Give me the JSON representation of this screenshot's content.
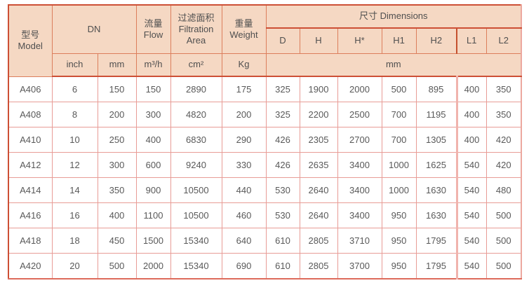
{
  "colors": {
    "header_bg": "#f5d8c3",
    "strong_border": "#cd4f35",
    "header_grid": "#dc7e5c",
    "body_grid": "#e89c96",
    "body_thick_border": "#f0b3ad",
    "outer_right_border": "#eca89f",
    "header_text": "#4f4f4f",
    "body_text": "#595959"
  },
  "table": {
    "header": {
      "model_zh": "型号",
      "model_en": "Model",
      "dn": "DN",
      "flow_zh": "流量",
      "flow_en": "Flow",
      "filtration_zh": "过滤面积",
      "filtration_en_line1": "Filtration",
      "filtration_en_line2": "Area",
      "weight_zh": "重量",
      "weight_en": "Weight",
      "dimensions": "尺寸 Dimensions",
      "dimension_columns": [
        "D",
        "H",
        "H*",
        "H1",
        "H2",
        "L1",
        "L2"
      ],
      "unit_inch": "inch",
      "unit_mm": "mm",
      "unit_flow": "m³/h",
      "unit_area": "cm²",
      "unit_weight": "Kg",
      "unit_dimensions": "mm"
    },
    "rows": [
      {
        "model": "A406",
        "values": [
          "6",
          "150",
          "150",
          "2890",
          "175",
          "325",
          "1900",
          "2000",
          "500",
          "895",
          "400",
          "350"
        ]
      },
      {
        "model": "A408",
        "values": [
          "8",
          "200",
          "300",
          "4820",
          "200",
          "325",
          "2200",
          "2500",
          "700",
          "1195",
          "400",
          "350"
        ]
      },
      {
        "model": "A410",
        "values": [
          "10",
          "250",
          "400",
          "6830",
          "290",
          "426",
          "2305",
          "2700",
          "700",
          "1305",
          "400",
          "420"
        ]
      },
      {
        "model": "A412",
        "values": [
          "12",
          "300",
          "600",
          "9240",
          "330",
          "426",
          "2635",
          "3400",
          "1000",
          "1625",
          "540",
          "420"
        ]
      },
      {
        "model": "A414",
        "values": [
          "14",
          "350",
          "900",
          "10500",
          "440",
          "530",
          "2640",
          "3400",
          "1000",
          "1630",
          "540",
          "480"
        ]
      },
      {
        "model": "A416",
        "values": [
          "16",
          "400",
          "1100",
          "10500",
          "460",
          "530",
          "2640",
          "3400",
          "950",
          "1630",
          "540",
          "500"
        ]
      },
      {
        "model": "A418",
        "values": [
          "18",
          "450",
          "1500",
          "15340",
          "640",
          "610",
          "2805",
          "3710",
          "950",
          "1795",
          "540",
          "500"
        ]
      },
      {
        "model": "A420",
        "values": [
          "20",
          "500",
          "2000",
          "15340",
          "690",
          "610",
          "2805",
          "3700",
          "950",
          "1795",
          "540",
          "500"
        ]
      }
    ]
  }
}
